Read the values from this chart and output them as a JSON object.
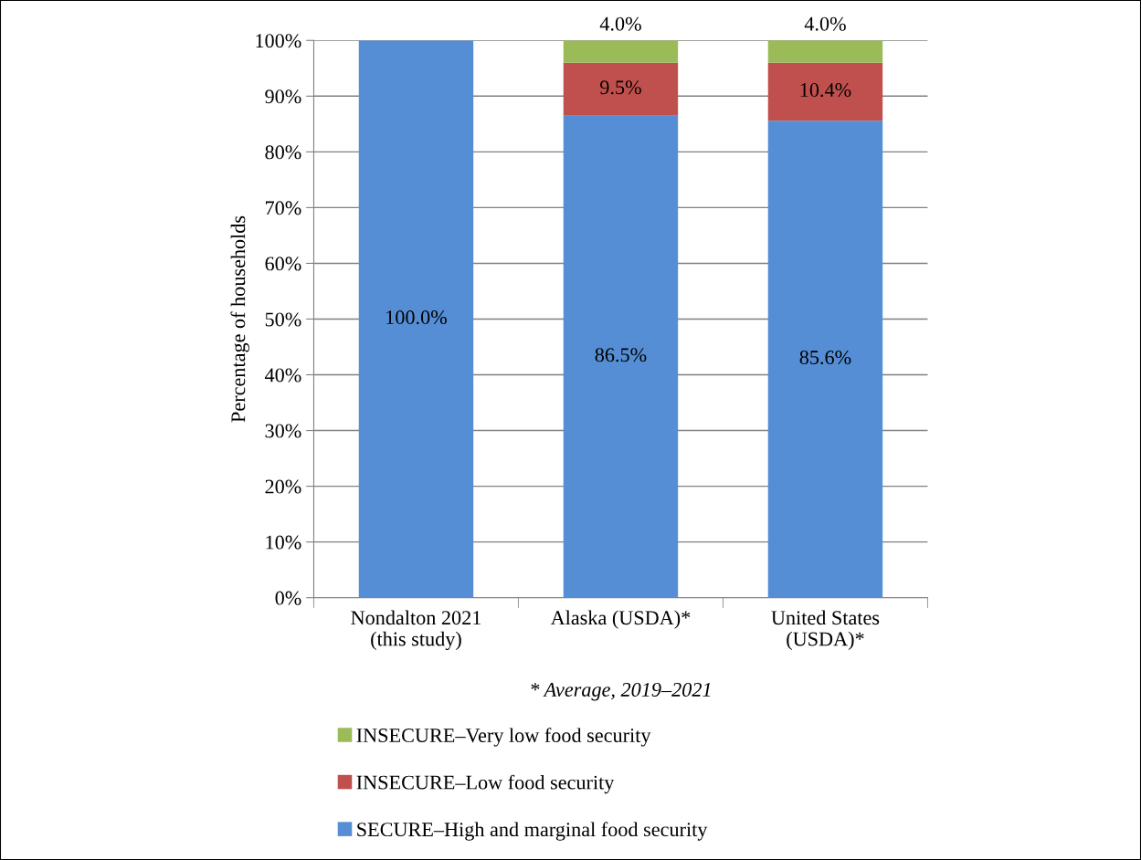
{
  "chart_data": {
    "type": "bar",
    "stacked": true,
    "ylabel": "Percentage of households",
    "categories": [
      "Nondalton 2021\n(this study)",
      "Alaska (USDA)*",
      "United States\n(USDA)*"
    ],
    "series": [
      {
        "name": "SECURE–High and marginal food security",
        "color": "#558ed5",
        "values": [
          100.0,
          86.5,
          85.6
        ],
        "value_labels": [
          "100.0%",
          "86.5%",
          "85.6%"
        ]
      },
      {
        "name": "INSECURE–Low food security",
        "color": "#c0504d",
        "values": [
          0,
          9.5,
          10.4
        ],
        "value_labels": [
          null,
          "9.5%",
          "10.4%"
        ]
      },
      {
        "name": "INSECURE–Very low food security",
        "color": "#9bbb59",
        "values": [
          0,
          4.0,
          4.0
        ],
        "value_labels": [
          null,
          "4.0%",
          "4.0%"
        ]
      }
    ],
    "ylim": [
      0,
      100
    ],
    "yticks": [
      {
        "value": 0,
        "label": "0%"
      },
      {
        "value": 10,
        "label": "10%"
      },
      {
        "value": 20,
        "label": "20%"
      },
      {
        "value": 30,
        "label": "30%"
      },
      {
        "value": 40,
        "label": "40%"
      },
      {
        "value": 50,
        "label": "50%"
      },
      {
        "value": 60,
        "label": "60%"
      },
      {
        "value": 70,
        "label": "70%"
      },
      {
        "value": 80,
        "label": "80%"
      },
      {
        "value": 90,
        "label": "90%"
      },
      {
        "value": 100,
        "label": "100%"
      }
    ],
    "grid": "y",
    "legend": "bottom",
    "annotations": [
      "* Average, 2019–2021"
    ]
  }
}
